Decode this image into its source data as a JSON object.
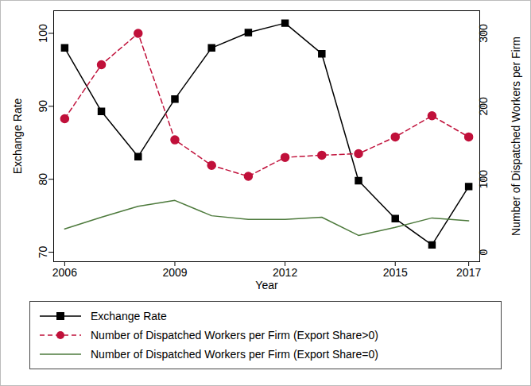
{
  "chart_data": {
    "type": "line",
    "xlabel": "Year",
    "ylabel": "Exchange Rate",
    "y2label": "Number of Dispatched Workers per Firm",
    "x": [
      2006,
      2007,
      2008,
      2009,
      2010,
      2011,
      2012,
      2013,
      2014,
      2015,
      2016,
      2017
    ],
    "xlim": [
      2005.7,
      2017.3
    ],
    "xticks": [
      2006,
      2009,
      2012,
      2015,
      2017
    ],
    "ylim": [
      68.7,
      103.1
    ],
    "yticks": [
      70,
      80,
      90,
      100
    ],
    "y2lim": [
      -13,
      331
    ],
    "y2ticks": [
      0,
      100,
      200,
      300
    ],
    "grid": false,
    "legend": "bottom",
    "series": [
      {
        "name": "Exchange Rate",
        "color": "#000000",
        "marker": "square",
        "line_style": "solid",
        "values": [
          98,
          89.3,
          83.1,
          91,
          98,
          100.1,
          101.4,
          97.2,
          79.8,
          74.6,
          71,
          79
        ]
      },
      {
        "name": "Number of Dispatched Workers per Firm (Export Share>0)",
        "color": "#c0103a",
        "marker": "circle",
        "line_style": "dashed",
        "axis": "y2",
        "values": [
          183,
          257,
          300,
          154,
          119,
          104,
          130,
          133,
          135,
          158,
          187,
          158
        ]
      },
      {
        "name": "Number of Dispatched Workers per Firm (Export Share=0)",
        "color": "#4d7a3c",
        "marker": "none",
        "line_style": "solid",
        "axis": "y2",
        "values": [
          32,
          48,
          63,
          71,
          50,
          45,
          45,
          48,
          23,
          34,
          47,
          43
        ]
      }
    ]
  }
}
